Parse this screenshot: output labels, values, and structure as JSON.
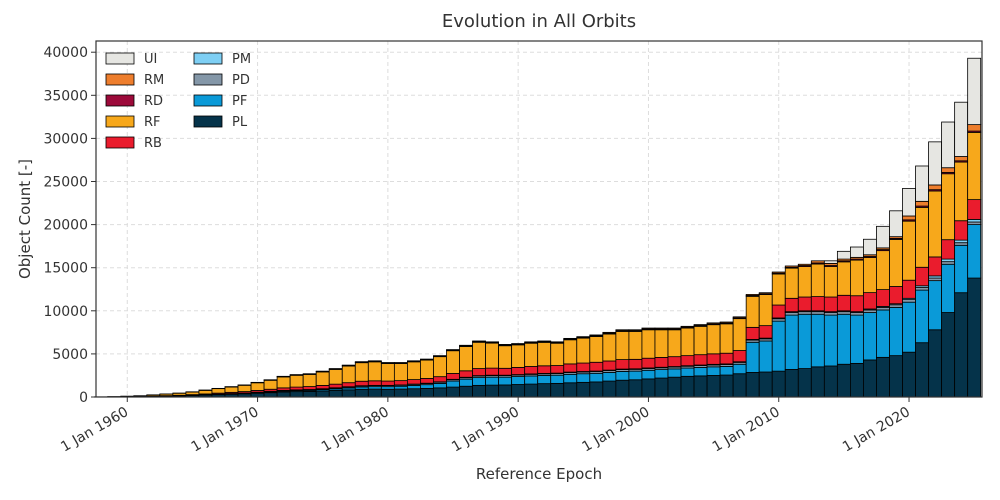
{
  "chart_data": {
    "type": "bar",
    "stacked": true,
    "title": "Evolution in All Orbits",
    "xlabel": "Reference Epoch",
    "ylabel": "Object Count [-]",
    "x": [
      1958,
      1959,
      1960,
      1961,
      1962,
      1963,
      1964,
      1965,
      1966,
      1967,
      1968,
      1969,
      1970,
      1971,
      1972,
      1973,
      1974,
      1975,
      1976,
      1977,
      1978,
      1979,
      1980,
      1981,
      1982,
      1983,
      1984,
      1985,
      1986,
      1987,
      1988,
      1989,
      1990,
      1991,
      1992,
      1993,
      1994,
      1995,
      1996,
      1997,
      1998,
      1999,
      2000,
      2001,
      2002,
      2003,
      2004,
      2005,
      2006,
      2007,
      2008,
      2009,
      2010,
      2011,
      2012,
      2013,
      2014,
      2015,
      2016,
      2017,
      2018,
      2019,
      2020,
      2021,
      2022,
      2023,
      2024,
      2025
    ],
    "xlim": [
      1957.6,
      2025.6
    ],
    "xticks": [
      {
        "value": 1960,
        "label": "1 Jan 1960"
      },
      {
        "value": 1970,
        "label": "1 Jan 1970"
      },
      {
        "value": 1980,
        "label": "1 Jan 1980"
      },
      {
        "value": 1990,
        "label": "1 Jan 1990"
      },
      {
        "value": 2000,
        "label": "1 Jan 2000"
      },
      {
        "value": 2010,
        "label": "1 Jan 2010"
      },
      {
        "value": 2020,
        "label": "1 Jan 2020"
      }
    ],
    "ylim": [
      0,
      41300
    ],
    "yticks": [
      0,
      5000,
      10000,
      15000,
      20000,
      25000,
      30000,
      35000,
      40000
    ],
    "grid": true,
    "legend": "upper left",
    "series": [
      {
        "name": "PL",
        "color": "#05334a",
        "values": [
          5,
          15,
          30,
          45,
          70,
          100,
          130,
          170,
          220,
          270,
          320,
          370,
          440,
          500,
          580,
          620,
          650,
          700,
          760,
          830,
          900,
          920,
          900,
          920,
          960,
          1000,
          1060,
          1150,
          1250,
          1350,
          1380,
          1400,
          1450,
          1500,
          1550,
          1580,
          1650,
          1700,
          1750,
          1850,
          1950,
          2000,
          2100,
          2200,
          2300,
          2400,
          2450,
          2500,
          2550,
          2700,
          2850,
          2900,
          3000,
          3200,
          3300,
          3500,
          3600,
          3800,
          3900,
          4300,
          4600,
          4800,
          5200,
          6300,
          7800,
          9800,
          12100,
          13800
        ]
      },
      {
        "name": "PF",
        "color": "#0a9ad8",
        "values": [
          0,
          0,
          0,
          0,
          5,
          10,
          10,
          15,
          20,
          30,
          40,
          50,
          60,
          80,
          100,
          110,
          120,
          150,
          180,
          220,
          260,
          280,
          300,
          330,
          380,
          430,
          520,
          700,
          820,
          900,
          920,
          900,
          920,
          940,
          950,
          950,
          980,
          1000,
          1000,
          1000,
          1020,
          1000,
          1000,
          980,
          960,
          960,
          980,
          1000,
          1000,
          1100,
          3500,
          3600,
          5800,
          6300,
          6300,
          6100,
          5900,
          5800,
          5600,
          5500,
          5500,
          5600,
          5800,
          6100,
          5700,
          5600,
          5500,
          6200
        ]
      },
      {
        "name": "PD",
        "color": "#8497a8",
        "values": [
          0,
          0,
          0,
          0,
          5,
          10,
          10,
          15,
          20,
          30,
          30,
          40,
          50,
          60,
          70,
          80,
          80,
          90,
          100,
          110,
          120,
          120,
          120,
          120,
          130,
          130,
          140,
          160,
          170,
          180,
          180,
          180,
          180,
          190,
          190,
          190,
          200,
          200,
          200,
          210,
          210,
          210,
          210,
          210,
          210,
          210,
          220,
          220,
          220,
          220,
          250,
          250,
          280,
          300,
          300,
          300,
          300,
          300,
          300,
          300,
          300,
          300,
          300,
          300,
          300,
          300,
          300,
          300
        ]
      },
      {
        "name": "PM",
        "color": "#7ecff4",
        "values": [
          0,
          0,
          0,
          0,
          0,
          0,
          0,
          5,
          5,
          10,
          10,
          10,
          10,
          20,
          20,
          20,
          20,
          20,
          30,
          30,
          30,
          30,
          30,
          30,
          30,
          40,
          40,
          40,
          50,
          50,
          50,
          50,
          50,
          50,
          50,
          50,
          60,
          60,
          60,
          60,
          60,
          60,
          60,
          60,
          60,
          60,
          60,
          70,
          70,
          70,
          80,
          80,
          90,
          100,
          100,
          100,
          100,
          100,
          100,
          110,
          110,
          120,
          150,
          200,
          250,
          300,
          300,
          300
        ]
      },
      {
        "name": "RB",
        "color": "#ea1c2d",
        "values": [
          0,
          5,
          10,
          15,
          25,
          35,
          50,
          70,
          90,
          110,
          140,
          160,
          200,
          240,
          290,
          320,
          340,
          380,
          420,
          470,
          520,
          530,
          500,
          500,
          520,
          550,
          600,
          680,
          750,
          820,
          820,
          800,
          830,
          860,
          880,
          880,
          950,
          980,
          1020,
          1060,
          1100,
          1100,
          1130,
          1140,
          1150,
          1170,
          1200,
          1220,
          1240,
          1300,
          1400,
          1450,
          1500,
          1550,
          1600,
          1650,
          1700,
          1800,
          1850,
          1900,
          1950,
          2000,
          2100,
          2150,
          2200,
          2250,
          2250,
          2300
        ]
      },
      {
        "name": "RF",
        "color": "#f7a81b",
        "values": [
          15,
          30,
          60,
          90,
          140,
          190,
          240,
          310,
          420,
          520,
          620,
          730,
          890,
          1040,
          1270,
          1370,
          1410,
          1570,
          1710,
          1930,
          2150,
          2200,
          2030,
          1980,
          2060,
          2130,
          2320,
          2640,
          2820,
          3050,
          2900,
          2620,
          2620,
          2700,
          2720,
          2590,
          2800,
          2890,
          2990,
          3130,
          3270,
          3240,
          3300,
          3210,
          3120,
          3200,
          3290,
          3380,
          3410,
          3700,
          3600,
          3600,
          3600,
          3500,
          3530,
          3780,
          3530,
          3880,
          4130,
          4070,
          4520,
          5460,
          6850,
          6950,
          7650,
          7650,
          6800,
          7800
        ]
      },
      {
        "name": "RD",
        "color": "#9c0a3a",
        "values": [
          0,
          0,
          0,
          0,
          5,
          5,
          10,
          10,
          15,
          20,
          20,
          20,
          30,
          30,
          40,
          40,
          40,
          50,
          50,
          50,
          60,
          60,
          60,
          60,
          60,
          60,
          60,
          70,
          70,
          80,
          80,
          80,
          80,
          80,
          80,
          80,
          80,
          80,
          90,
          90,
          90,
          90,
          100,
          100,
          100,
          100,
          100,
          100,
          100,
          100,
          100,
          100,
          100,
          100,
          120,
          120,
          120,
          120,
          120,
          120,
          120,
          120,
          150,
          150,
          150,
          150,
          150,
          150
        ]
      },
      {
        "name": "RM",
        "color": "#ee7e2d",
        "values": [
          0,
          0,
          0,
          0,
          0,
          0,
          0,
          5,
          10,
          10,
          20,
          20,
          20,
          30,
          30,
          40,
          40,
          40,
          50,
          60,
          60,
          60,
          60,
          60,
          60,
          60,
          60,
          60,
          70,
          70,
          70,
          70,
          70,
          80,
          80,
          80,
          80,
          90,
          90,
          100,
          100,
          100,
          100,
          100,
          100,
          100,
          100,
          110,
          110,
          110,
          120,
          120,
          130,
          150,
          150,
          250,
          250,
          200,
          200,
          200,
          200,
          200,
          450,
          550,
          550,
          550,
          500,
          750
        ]
      },
      {
        "name": "UI",
        "color": "#e6e6e2",
        "values": [
          0,
          0,
          0,
          0,
          0,
          0,
          0,
          0,
          0,
          0,
          0,
          0,
          0,
          0,
          0,
          0,
          0,
          0,
          0,
          0,
          0,
          0,
          0,
          0,
          0,
          0,
          0,
          0,
          0,
          0,
          0,
          0,
          0,
          0,
          0,
          0,
          0,
          0,
          0,
          0,
          0,
          0,
          0,
          0,
          0,
          0,
          0,
          0,
          0,
          0,
          0,
          0,
          0,
          0,
          0,
          0,
          300,
          900,
          1200,
          1800,
          2500,
          3000,
          3200,
          4100,
          5000,
          5300,
          6300,
          7700
        ]
      }
    ]
  }
}
